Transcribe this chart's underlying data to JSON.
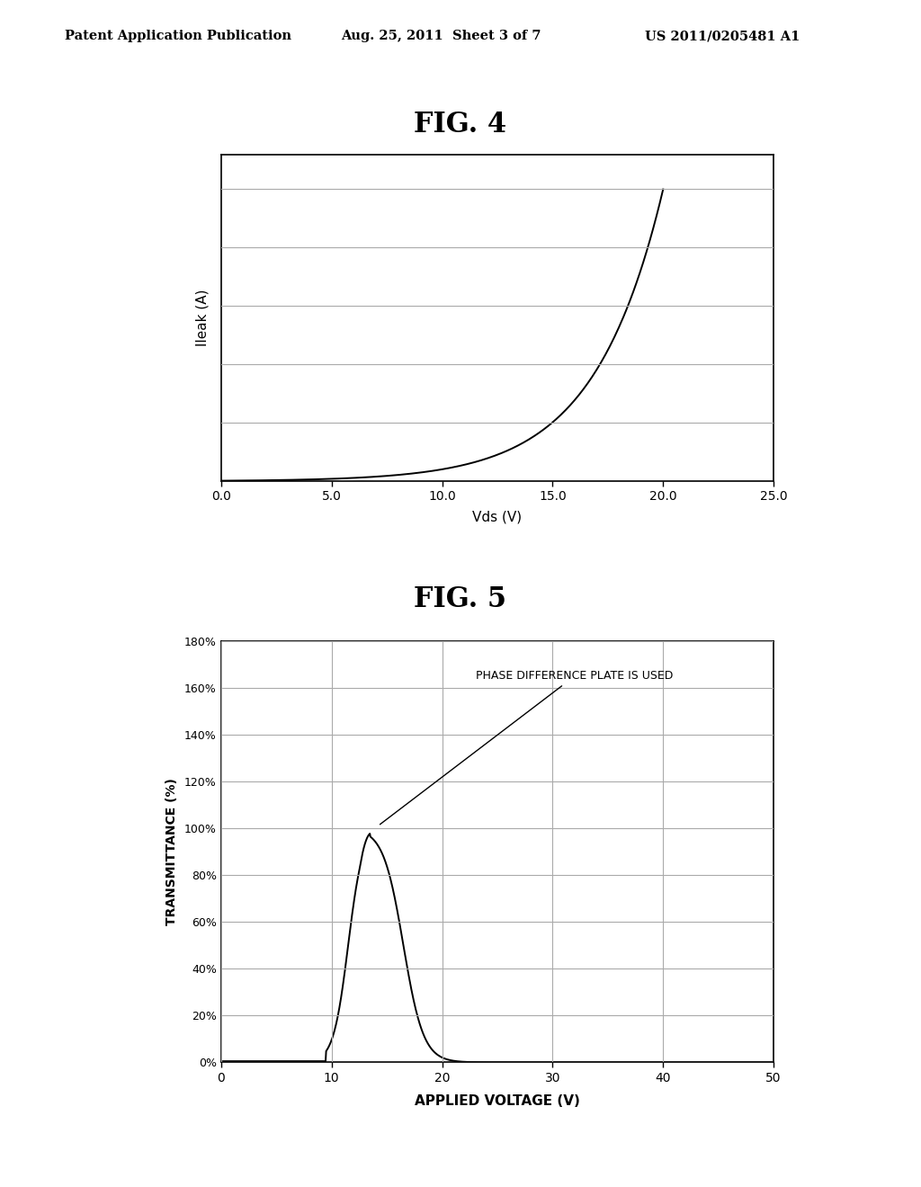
{
  "background_color": "#ffffff",
  "header_left": "Patent Application Publication",
  "header_center": "Aug. 25, 2011  Sheet 3 of 7",
  "header_right": "US 2011/0205481 A1",
  "fig4_title": "FIG. 4",
  "fig4_xlabel": "Vds (V)",
  "fig4_ylabel": "Ileak (A)",
  "fig4_xlim": [
    0.0,
    25.0
  ],
  "fig4_xticks": [
    0.0,
    5.0,
    10.0,
    15.0,
    20.0,
    25.0
  ],
  "fig4_xtick_labels": [
    "0.0",
    "5.0",
    "10.0",
    "15.0",
    "20.0",
    "25.0"
  ],
  "fig5_title": "FIG. 5",
  "fig5_xlabel": "APPLIED VOLTAGE (V)",
  "fig5_ylabel": "TRANSMITTANCE (%)",
  "fig5_xlim": [
    0,
    50
  ],
  "fig5_xticks": [
    0,
    10,
    20,
    30,
    40,
    50
  ],
  "fig5_ylim": [
    0,
    180
  ],
  "fig5_yticks": [
    0,
    20,
    40,
    60,
    80,
    100,
    120,
    140,
    160,
    180
  ],
  "fig5_ytick_labels": [
    "0%",
    "20%",
    "40%",
    "60%",
    "80%",
    "100%",
    "120%",
    "140%",
    "160%",
    "180%"
  ],
  "fig5_annotation": "PHASE DIFFERENCE PLATE IS USED",
  "line_color": "#000000",
  "grid_color": "#aaaaaa"
}
